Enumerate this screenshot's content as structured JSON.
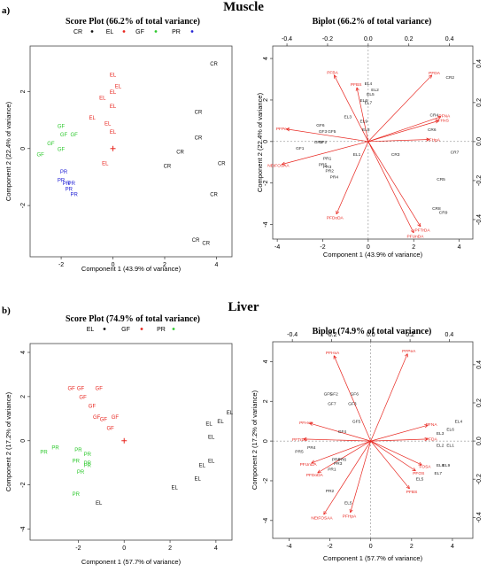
{
  "panels": {
    "a": {
      "letter": "a)",
      "section_title": "Muscle"
    },
    "b": {
      "letter": "b)",
      "section_title": "Liver"
    }
  },
  "colors": {
    "red": "#e8261f",
    "green": "#2ec92e",
    "blue": "#2424d6",
    "black": "#111111",
    "frame": "#444444"
  },
  "chart_data": [
    {
      "id": "muscle-score",
      "type": "scatter",
      "title": "Score Plot (66.2% of total variance)",
      "xlabel": "Component 1 (43.9% of variance)",
      "ylabel": "Component 2 (22.4% of variance)",
      "xlim": [
        -3.2,
        4.6
      ],
      "ylim": [
        -3.8,
        3.6
      ],
      "xticks": [
        -2,
        0,
        2,
        4
      ],
      "yticks": [
        -2,
        0,
        2
      ],
      "legend": [
        {
          "label": "CR",
          "color": "#111111"
        },
        {
          "label": "EL",
          "color": "#e8261f"
        },
        {
          "label": "GF",
          "color": "#2ec92e"
        },
        {
          "label": "PR",
          "color": "#2424d6"
        }
      ],
      "centroid": {
        "x": 0,
        "y": 0
      },
      "series": [
        {
          "name": "CR",
          "color": "#111111",
          "points": [
            {
              "x": 3.9,
              "y": 3.0,
              "label": "CR"
            },
            {
              "x": 3.3,
              "y": 1.3,
              "label": "CR"
            },
            {
              "x": 3.3,
              "y": 0.4,
              "label": "CR"
            },
            {
              "x": 2.6,
              "y": -0.1,
              "label": "CR"
            },
            {
              "x": 2.1,
              "y": -0.6,
              "label": "CR"
            },
            {
              "x": 4.2,
              "y": -0.5,
              "label": "CR"
            },
            {
              "x": 3.9,
              "y": -1.6,
              "label": "CR"
            },
            {
              "x": 3.2,
              "y": -3.2,
              "label": "CR"
            },
            {
              "x": 3.6,
              "y": -3.3,
              "label": "CR"
            }
          ]
        },
        {
          "name": "EL",
          "color": "#e8261f",
          "points": [
            {
              "x": 0.0,
              "y": 2.6,
              "label": "EL"
            },
            {
              "x": 0.2,
              "y": 2.2,
              "label": "EL"
            },
            {
              "x": 0.0,
              "y": 2.0,
              "label": "EL"
            },
            {
              "x": -0.4,
              "y": 1.8,
              "label": "EL"
            },
            {
              "x": 0.0,
              "y": 1.5,
              "label": "EL"
            },
            {
              "x": -0.8,
              "y": 1.1,
              "label": "EL"
            },
            {
              "x": -0.2,
              "y": 0.9,
              "label": "EL"
            },
            {
              "x": 0.0,
              "y": 0.6,
              "label": "EL"
            },
            {
              "x": -0.3,
              "y": -0.5,
              "label": "EL"
            }
          ]
        },
        {
          "name": "GF",
          "color": "#2ec92e",
          "points": [
            {
              "x": -2.0,
              "y": 0.8,
              "label": "GF"
            },
            {
              "x": -1.9,
              "y": 0.5,
              "label": "GF"
            },
            {
              "x": -1.5,
              "y": 0.5,
              "label": "GF"
            },
            {
              "x": -2.4,
              "y": 0.2,
              "label": "GF"
            },
            {
              "x": -2.0,
              "y": 0.0,
              "label": "GF"
            },
            {
              "x": -2.8,
              "y": -0.2,
              "label": "GF"
            }
          ]
        },
        {
          "name": "PR",
          "color": "#2424d6",
          "points": [
            {
              "x": -1.9,
              "y": -0.8,
              "label": "PR"
            },
            {
              "x": -2.0,
              "y": -1.1,
              "label": "PR"
            },
            {
              "x": -1.8,
              "y": -1.2,
              "label": "PR"
            },
            {
              "x": -1.6,
              "y": -1.2,
              "label": "PR"
            },
            {
              "x": -1.7,
              "y": -1.4,
              "label": "PR"
            },
            {
              "x": -1.5,
              "y": -1.6,
              "label": "PR"
            }
          ]
        }
      ]
    },
    {
      "id": "muscle-biplot",
      "type": "scatter",
      "title": "Biplot (66.2% of total variance)",
      "xlabel": "Component 1 (43.9% of variance)",
      "ylabel": "Component 2 (22.4% of variance)",
      "xlim": [
        -4.2,
        4.6
      ],
      "ylim": [
        -4.7,
        4.6
      ],
      "xticks": [
        -4,
        -2,
        0,
        2,
        4
      ],
      "yticks": [
        -4,
        -2,
        0,
        2,
        4
      ],
      "x2lim": [
        -0.47,
        0.515
      ],
      "y2lim": [
        -0.5,
        0.49
      ],
      "x2ticks": [
        -0.4,
        -0.2,
        0.0,
        0.2,
        0.4
      ],
      "y2ticks": [
        -0.4,
        -0.2,
        0.0,
        0.2,
        0.4
      ],
      "vectors": [
        {
          "label": "PFBA",
          "x": -1.5,
          "y": 3.2
        },
        {
          "label": "PFDA",
          "x": 2.8,
          "y": 3.2
        },
        {
          "label": "PFBS",
          "x": -0.5,
          "y": 2.6
        },
        {
          "label": "PFNA",
          "x": 3.2,
          "y": 1.2
        },
        {
          "label": "PFHxS",
          "x": 3.1,
          "y": 1.0
        },
        {
          "label": "PFHpA",
          "x": 2.7,
          "y": 0.1
        },
        {
          "label": "PFPeA",
          "x": -3.6,
          "y": 0.6
        },
        {
          "label": "NEtFOSAA",
          "x": -3.8,
          "y": -1.1
        },
        {
          "label": "PFDoDA",
          "x": -1.4,
          "y": -3.5
        },
        {
          "label": "PFTrDA",
          "x": 2.3,
          "y": -4.1
        },
        {
          "label": "PFUnDA",
          "x": 2.0,
          "y": -4.4
        }
      ],
      "points": [
        {
          "x": 3.6,
          "y": 3.1,
          "label": "CR2"
        },
        {
          "x": 2.9,
          "y": 1.3,
          "label": "CR4"
        },
        {
          "x": 2.8,
          "y": 0.6,
          "label": "CR6"
        },
        {
          "x": 1.2,
          "y": -0.6,
          "label": "CR3"
        },
        {
          "x": 3.8,
          "y": -0.5,
          "label": "CR7"
        },
        {
          "x": 3.2,
          "y": -1.8,
          "label": "CR5"
        },
        {
          "x": 3.0,
          "y": -3.2,
          "label": "CR8"
        },
        {
          "x": 3.3,
          "y": -3.4,
          "label": "CR9"
        },
        {
          "x": 0.0,
          "y": 2.8,
          "label": "EL4"
        },
        {
          "x": 0.3,
          "y": 2.5,
          "label": "EL2"
        },
        {
          "x": 0.1,
          "y": 2.3,
          "label": "EL5"
        },
        {
          "x": -0.2,
          "y": 2.0,
          "label": "EL6"
        },
        {
          "x": 0.0,
          "y": 1.9,
          "label": "EL7"
        },
        {
          "x": -0.9,
          "y": 1.2,
          "label": "EL3"
        },
        {
          "x": -0.2,
          "y": 1.0,
          "label": "EL9"
        },
        {
          "x": -0.1,
          "y": 0.6,
          "label": "EL8"
        },
        {
          "x": -0.5,
          "y": -0.6,
          "label": "EL1"
        },
        {
          "x": -2.1,
          "y": 0.8,
          "label": "GF6"
        },
        {
          "x": -2.0,
          "y": 0.5,
          "label": "GF3"
        },
        {
          "x": -1.6,
          "y": 0.5,
          "label": "GF5"
        },
        {
          "x": -2.2,
          "y": 0.0,
          "label": "GF4"
        },
        {
          "x": -2.0,
          "y": 0.0,
          "label": "GF2"
        },
        {
          "x": -3.0,
          "y": -0.3,
          "label": "GF1"
        },
        {
          "x": -1.8,
          "y": -0.8,
          "label": "PR1"
        },
        {
          "x": -2.0,
          "y": -1.1,
          "label": "PR5"
        },
        {
          "x": -1.8,
          "y": -1.2,
          "label": "PR3"
        },
        {
          "x": -1.7,
          "y": -1.4,
          "label": "PR2"
        },
        {
          "x": -1.5,
          "y": -1.7,
          "label": "PR4"
        }
      ]
    },
    {
      "id": "liver-score",
      "type": "scatter",
      "title": "Score Plot (74.9% of total variance)",
      "xlabel": "Component 1 (57.7% of variance)",
      "ylabel": "Component 2 (17.2% of variance)",
      "xlim": [
        -4.1,
        4.7
      ],
      "ylim": [
        -4.5,
        4.4
      ],
      "xticks": [
        -2,
        0,
        2,
        4
      ],
      "yticks": [
        -4,
        -2,
        0,
        2,
        4
      ],
      "legend": [
        {
          "label": "EL",
          "color": "#111111"
        },
        {
          "label": "GF",
          "color": "#e8261f"
        },
        {
          "label": "PR",
          "color": "#2ec92e"
        }
      ],
      "centroid": {
        "x": 0,
        "y": 0
      },
      "series": [
        {
          "name": "EL",
          "color": "#111111",
          "points": [
            {
              "x": 4.6,
              "y": 1.3,
              "label": "EL"
            },
            {
              "x": 4.2,
              "y": 0.9,
              "label": "EL"
            },
            {
              "x": 3.7,
              "y": 0.8,
              "label": "EL"
            },
            {
              "x": 3.8,
              "y": 0.2,
              "label": "EL"
            },
            {
              "x": 3.8,
              "y": -0.9,
              "label": "EL"
            },
            {
              "x": 3.4,
              "y": -1.1,
              "label": "EL"
            },
            {
              "x": 3.2,
              "y": -1.7,
              "label": "EL"
            },
            {
              "x": 2.2,
              "y": -2.1,
              "label": "EL"
            },
            {
              "x": -1.1,
              "y": -2.8,
              "label": "EL"
            }
          ]
        },
        {
          "name": "GF",
          "color": "#e8261f",
          "points": [
            {
              "x": -1.9,
              "y": 2.4,
              "label": "GF"
            },
            {
              "x": -2.3,
              "y": 2.4,
              "label": "GF"
            },
            {
              "x": -1.1,
              "y": 2.4,
              "label": "GF"
            },
            {
              "x": -1.8,
              "y": 2.0,
              "label": "GF"
            },
            {
              "x": -1.4,
              "y": 1.6,
              "label": "GF"
            },
            {
              "x": -1.2,
              "y": 1.1,
              "label": "GF"
            },
            {
              "x": -0.9,
              "y": 1.0,
              "label": "GF"
            },
            {
              "x": -0.4,
              "y": 1.1,
              "label": "GF"
            },
            {
              "x": -0.6,
              "y": 0.6,
              "label": "GF"
            }
          ]
        },
        {
          "name": "PR",
          "color": "#2ec92e",
          "points": [
            {
              "x": -3.5,
              "y": -0.5,
              "label": "PR"
            },
            {
              "x": -3.0,
              "y": -0.3,
              "label": "PR"
            },
            {
              "x": -2.0,
              "y": -0.4,
              "label": "PR"
            },
            {
              "x": -1.6,
              "y": -0.6,
              "label": "PR"
            },
            {
              "x": -2.1,
              "y": -0.9,
              "label": "PR"
            },
            {
              "x": -1.6,
              "y": -1.0,
              "label": "PR"
            },
            {
              "x": -1.6,
              "y": -1.1,
              "label": "PR"
            },
            {
              "x": -1.9,
              "y": -1.4,
              "label": "PR"
            },
            {
              "x": -2.1,
              "y": -2.4,
              "label": "PR"
            }
          ]
        }
      ]
    },
    {
      "id": "liver-biplot",
      "type": "scatter",
      "title": "Biplot (74.9% of total variance)",
      "xlabel": "Component 1 (57.7% of variance)",
      "ylabel": "Component 2 (17.2% of variance)",
      "xlim": [
        -4.8,
        5.0
      ],
      "ylim": [
        -4.9,
        5.0
      ],
      "xticks": [
        -4,
        -2,
        0,
        2,
        4
      ],
      "yticks": [
        -4,
        -2,
        0,
        2,
        4
      ],
      "x2lim": [
        -0.5,
        0.52
      ],
      "y2lim": [
        -0.51,
        0.52
      ],
      "x2ticks": [
        -0.4,
        -0.2,
        0.0,
        0.2,
        0.4
      ],
      "y2ticks": [
        -0.4,
        -0.2,
        0.0,
        0.2,
        0.4
      ],
      "vectors": [
        {
          "label": "PFHxA",
          "x": -1.8,
          "y": 4.3
        },
        {
          "label": "PFPeA",
          "x": 1.8,
          "y": 4.4
        },
        {
          "label": "PFNA",
          "x": 2.8,
          "y": 0.8
        },
        {
          "label": "PFDA",
          "x": 2.8,
          "y": 0.1
        },
        {
          "label": "PFHxS",
          "x": -3.0,
          "y": 0.9
        },
        {
          "label": "PFTrDA",
          "x": -3.3,
          "y": 0.1
        },
        {
          "label": "PFUnDA",
          "x": -2.9,
          "y": -1.1
        },
        {
          "label": "PFDoDA",
          "x": -2.6,
          "y": -1.6
        },
        {
          "label": "NEtFOSAA",
          "x": -2.3,
          "y": -3.7
        },
        {
          "label": "PFHpA",
          "x": -1.0,
          "y": -3.6
        },
        {
          "label": "PFOS",
          "x": 2.2,
          "y": -1.5
        },
        {
          "label": "PFBS",
          "x": 1.9,
          "y": -2.4
        },
        {
          "label": "FOSA",
          "x": 2.5,
          "y": -1.2
        }
      ],
      "points": [
        {
          "x": 4.3,
          "y": 1.0,
          "label": "EL4"
        },
        {
          "x": 3.9,
          "y": 0.6,
          "label": "EL6"
        },
        {
          "x": 3.4,
          "y": 0.4,
          "label": "EL3"
        },
        {
          "x": 3.4,
          "y": -0.2,
          "label": "EL2"
        },
        {
          "x": 3.9,
          "y": -0.2,
          "label": "EL1"
        },
        {
          "x": 3.7,
          "y": -1.2,
          "label": "EL9"
        },
        {
          "x": 3.4,
          "y": -1.2,
          "label": "EL8"
        },
        {
          "x": 3.3,
          "y": -1.6,
          "label": "EL7"
        },
        {
          "x": 2.4,
          "y": -1.9,
          "label": "EL5"
        },
        {
          "x": -1.1,
          "y": -3.1,
          "label": "EL5"
        },
        {
          "x": -2.1,
          "y": 2.4,
          "label": "GF5"
        },
        {
          "x": -1.8,
          "y": 2.4,
          "label": "GF2"
        },
        {
          "x": -0.8,
          "y": 2.4,
          "label": "GF6"
        },
        {
          "x": -1.9,
          "y": 1.9,
          "label": "GF7"
        },
        {
          "x": -0.9,
          "y": 1.9,
          "label": "GF3"
        },
        {
          "x": -0.7,
          "y": 1.0,
          "label": "GF5"
        },
        {
          "x": -1.4,
          "y": 0.5,
          "label": "GF4"
        },
        {
          "x": -3.5,
          "y": -0.5,
          "label": "PR5"
        },
        {
          "x": -2.9,
          "y": -0.3,
          "label": "PR4"
        },
        {
          "x": -1.7,
          "y": -0.9,
          "label": "PR8"
        },
        {
          "x": -1.4,
          "y": -0.9,
          "label": "PR6"
        },
        {
          "x": -1.6,
          "y": -1.1,
          "label": "PR3"
        },
        {
          "x": -1.9,
          "y": -1.4,
          "label": "PR1"
        },
        {
          "x": -2.0,
          "y": -2.5,
          "label": "PR2"
        }
      ]
    }
  ]
}
